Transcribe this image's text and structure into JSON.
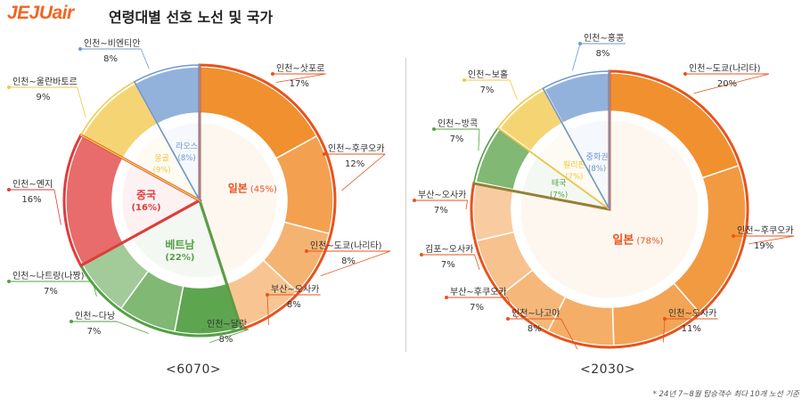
{
  "header": {
    "logo": "JEJUair",
    "title": "연령대별 선호 노선 및 국가"
  },
  "colors": {
    "japan": "#f08a24",
    "china": "#e23b3b",
    "vietnam": "#55a046",
    "mongolia": "#f2c744",
    "laos": "#6f98cf",
    "thailand": "#55a046",
    "philippines": "#f2c744",
    "hongkong": "#6f98cf",
    "highlight": "#e8531d"
  },
  "chart_data": [
    {
      "type": "pie",
      "title": "<6070>",
      "countries": [
        {
          "name": "일본",
          "value": 45,
          "label": "(45%)"
        },
        {
          "name": "베트남",
          "value": 22,
          "label": "(22%)"
        },
        {
          "name": "중국",
          "value": 16,
          "label": "(16%)"
        },
        {
          "name": "몽골",
          "value": 9,
          "label": "(9%)"
        },
        {
          "name": "라오스",
          "value": 8,
          "label": "(8%)"
        }
      ],
      "routes": [
        {
          "name": "인천~삿포로",
          "value": 17,
          "label": "17%",
          "country": "일본"
        },
        {
          "name": "인천~후쿠오카",
          "value": 12,
          "label": "12%",
          "country": "일본"
        },
        {
          "name": "인천~도쿄(나리타)",
          "value": 8,
          "label": "8%",
          "country": "일본"
        },
        {
          "name": "부산~오사카",
          "value": 8,
          "label": "8%",
          "country": "일본"
        },
        {
          "name": "인천~달랏",
          "value": 8,
          "label": "8%",
          "country": "베트남"
        },
        {
          "name": "인천~다낭",
          "value": 7,
          "label": "7%",
          "country": "베트남"
        },
        {
          "name": "인천~나트랑(나짱)",
          "value": 7,
          "label": "7%",
          "country": "베트남"
        },
        {
          "name": "인천~옌지",
          "value": 16,
          "label": "16%",
          "country": "중국"
        },
        {
          "name": "인천~울란바토르",
          "value": 9,
          "label": "9%",
          "country": "몽골"
        },
        {
          "name": "인천~비엔티안",
          "value": 8,
          "label": "8%",
          "country": "라오스"
        }
      ]
    },
    {
      "type": "pie",
      "title": "<2030>",
      "countries": [
        {
          "name": "일본",
          "value": 78,
          "label": "(78%)"
        },
        {
          "name": "태국",
          "value": 7,
          "label": "(7%)"
        },
        {
          "name": "필리핀",
          "value": 7,
          "label": "(7%)"
        },
        {
          "name": "중화권",
          "value": 8,
          "label": "(8%)"
        }
      ],
      "routes": [
        {
          "name": "인천~도쿄(나리타)",
          "value": 20,
          "label": "20%",
          "country": "일본"
        },
        {
          "name": "인천~후쿠오카",
          "value": 19,
          "label": "19%",
          "country": "일본"
        },
        {
          "name": "인천~오사카",
          "value": 11,
          "label": "11%",
          "country": "일본"
        },
        {
          "name": "인천~나고야",
          "value": 8,
          "label": "8%",
          "country": "일본"
        },
        {
          "name": "부산~후쿠오카",
          "value": 7,
          "label": "7%",
          "country": "일본"
        },
        {
          "name": "김포~오사카",
          "value": 7,
          "label": "7%",
          "country": "일본"
        },
        {
          "name": "부산~오사카",
          "value": 7,
          "label": "7%",
          "country": "일본"
        },
        {
          "name": "인천~방콕",
          "value": 7,
          "label": "7%",
          "country": "태국"
        },
        {
          "name": "인천~보홀",
          "value": 7,
          "label": "7%",
          "country": "필리핀"
        },
        {
          "name": "인천~홍콩",
          "value": 8,
          "label": "8%",
          "country": "중화권"
        }
      ]
    }
  ],
  "footnote": "* 24년 7~8월 탑승객수 최다 10개 노선 기준"
}
